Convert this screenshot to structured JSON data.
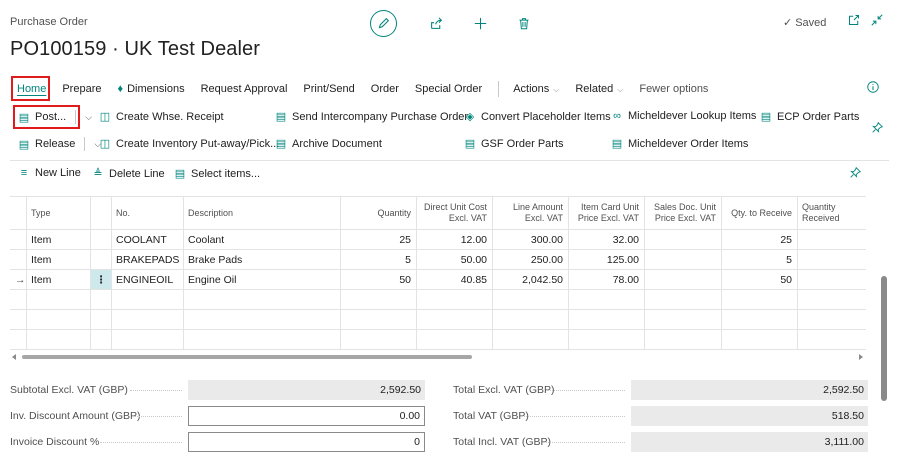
{
  "header": {
    "breadcrumb": "Purchase Order",
    "title": "PO100159 · UK Test Dealer",
    "saved_label": "Saved"
  },
  "menu": {
    "items": [
      "Home",
      "Prepare",
      "Dimensions",
      "Request Approval",
      "Print/Send",
      "Order",
      "Special Order"
    ],
    "actions": "Actions",
    "related": "Related",
    "fewer": "Fewer options"
  },
  "ribbon": {
    "post": "Post...",
    "release": "Release",
    "create_whse_receipt": "Create Whse. Receipt",
    "create_inventory": "Create Inventory Put-away/Pick...",
    "send_ic": "Send Intercompany Purchase Order",
    "archive": "Archive Document",
    "convert_placeholder": "Convert Placeholder Items",
    "gsf_order_parts": "GSF Order Parts",
    "micheldever_lookup": "Micheldever Lookup Items",
    "micheldever_order": "Micheldever Order Items",
    "ecp_order_parts": "ECP Order Parts"
  },
  "lines_bar": {
    "new_line": "New Line",
    "delete_line": "Delete Line",
    "select_items": "Select items..."
  },
  "grid": {
    "headers": {
      "type": "Type",
      "no": "No.",
      "description": "Description",
      "quantity": "Quantity",
      "direct_unit_cost": "Direct Unit Cost Excl. VAT",
      "line_amount": "Line Amount Excl. VAT",
      "item_card_price": "Item Card Unit Price Excl. VAT",
      "sales_doc_price": "Sales Doc. Unit Price Excl. VAT",
      "qty_to_receive": "Qty. to Receive",
      "qty_received": "Quantity Received"
    },
    "rows": [
      {
        "type": "Item",
        "no": "COOLANT",
        "description": "Coolant",
        "quantity": "25",
        "direct_unit_cost": "12.00",
        "line_amount": "300.00",
        "item_card_price": "32.00",
        "sales_doc_price": "",
        "qty_to_receive": "25",
        "qty_received": ""
      },
      {
        "type": "Item",
        "no": "BRAKEPADS",
        "description": "Brake Pads",
        "quantity": "5",
        "direct_unit_cost": "50.00",
        "line_amount": "250.00",
        "item_card_price": "125.00",
        "sales_doc_price": "",
        "qty_to_receive": "5",
        "qty_received": ""
      },
      {
        "type": "Item",
        "no": "ENGINEOIL",
        "description": "Engine Oil",
        "quantity": "50",
        "direct_unit_cost": "40.85",
        "line_amount": "2,042.50",
        "item_card_price": "78.00",
        "sales_doc_price": "",
        "qty_to_receive": "50",
        "qty_received": ""
      }
    ]
  },
  "totals": {
    "subtotal_label": "Subtotal Excl. VAT (GBP)",
    "subtotal_value": "2,592.50",
    "inv_discount_label": "Inv. Discount Amount (GBP)",
    "inv_discount_value": "0.00",
    "invoice_discount_pct_label": "Invoice Discount %",
    "invoice_discount_pct_value": "0",
    "total_excl_label": "Total Excl. VAT (GBP)",
    "total_excl_value": "2,592.50",
    "total_vat_label": "Total VAT (GBP)",
    "total_vat_value": "518.50",
    "total_incl_label": "Total Incl. VAT (GBP)",
    "total_incl_value": "3,111.00"
  },
  "colors": {
    "accent": "#00857c",
    "highlight": "#e01b1b",
    "selected_cell": "#cde9ec"
  }
}
